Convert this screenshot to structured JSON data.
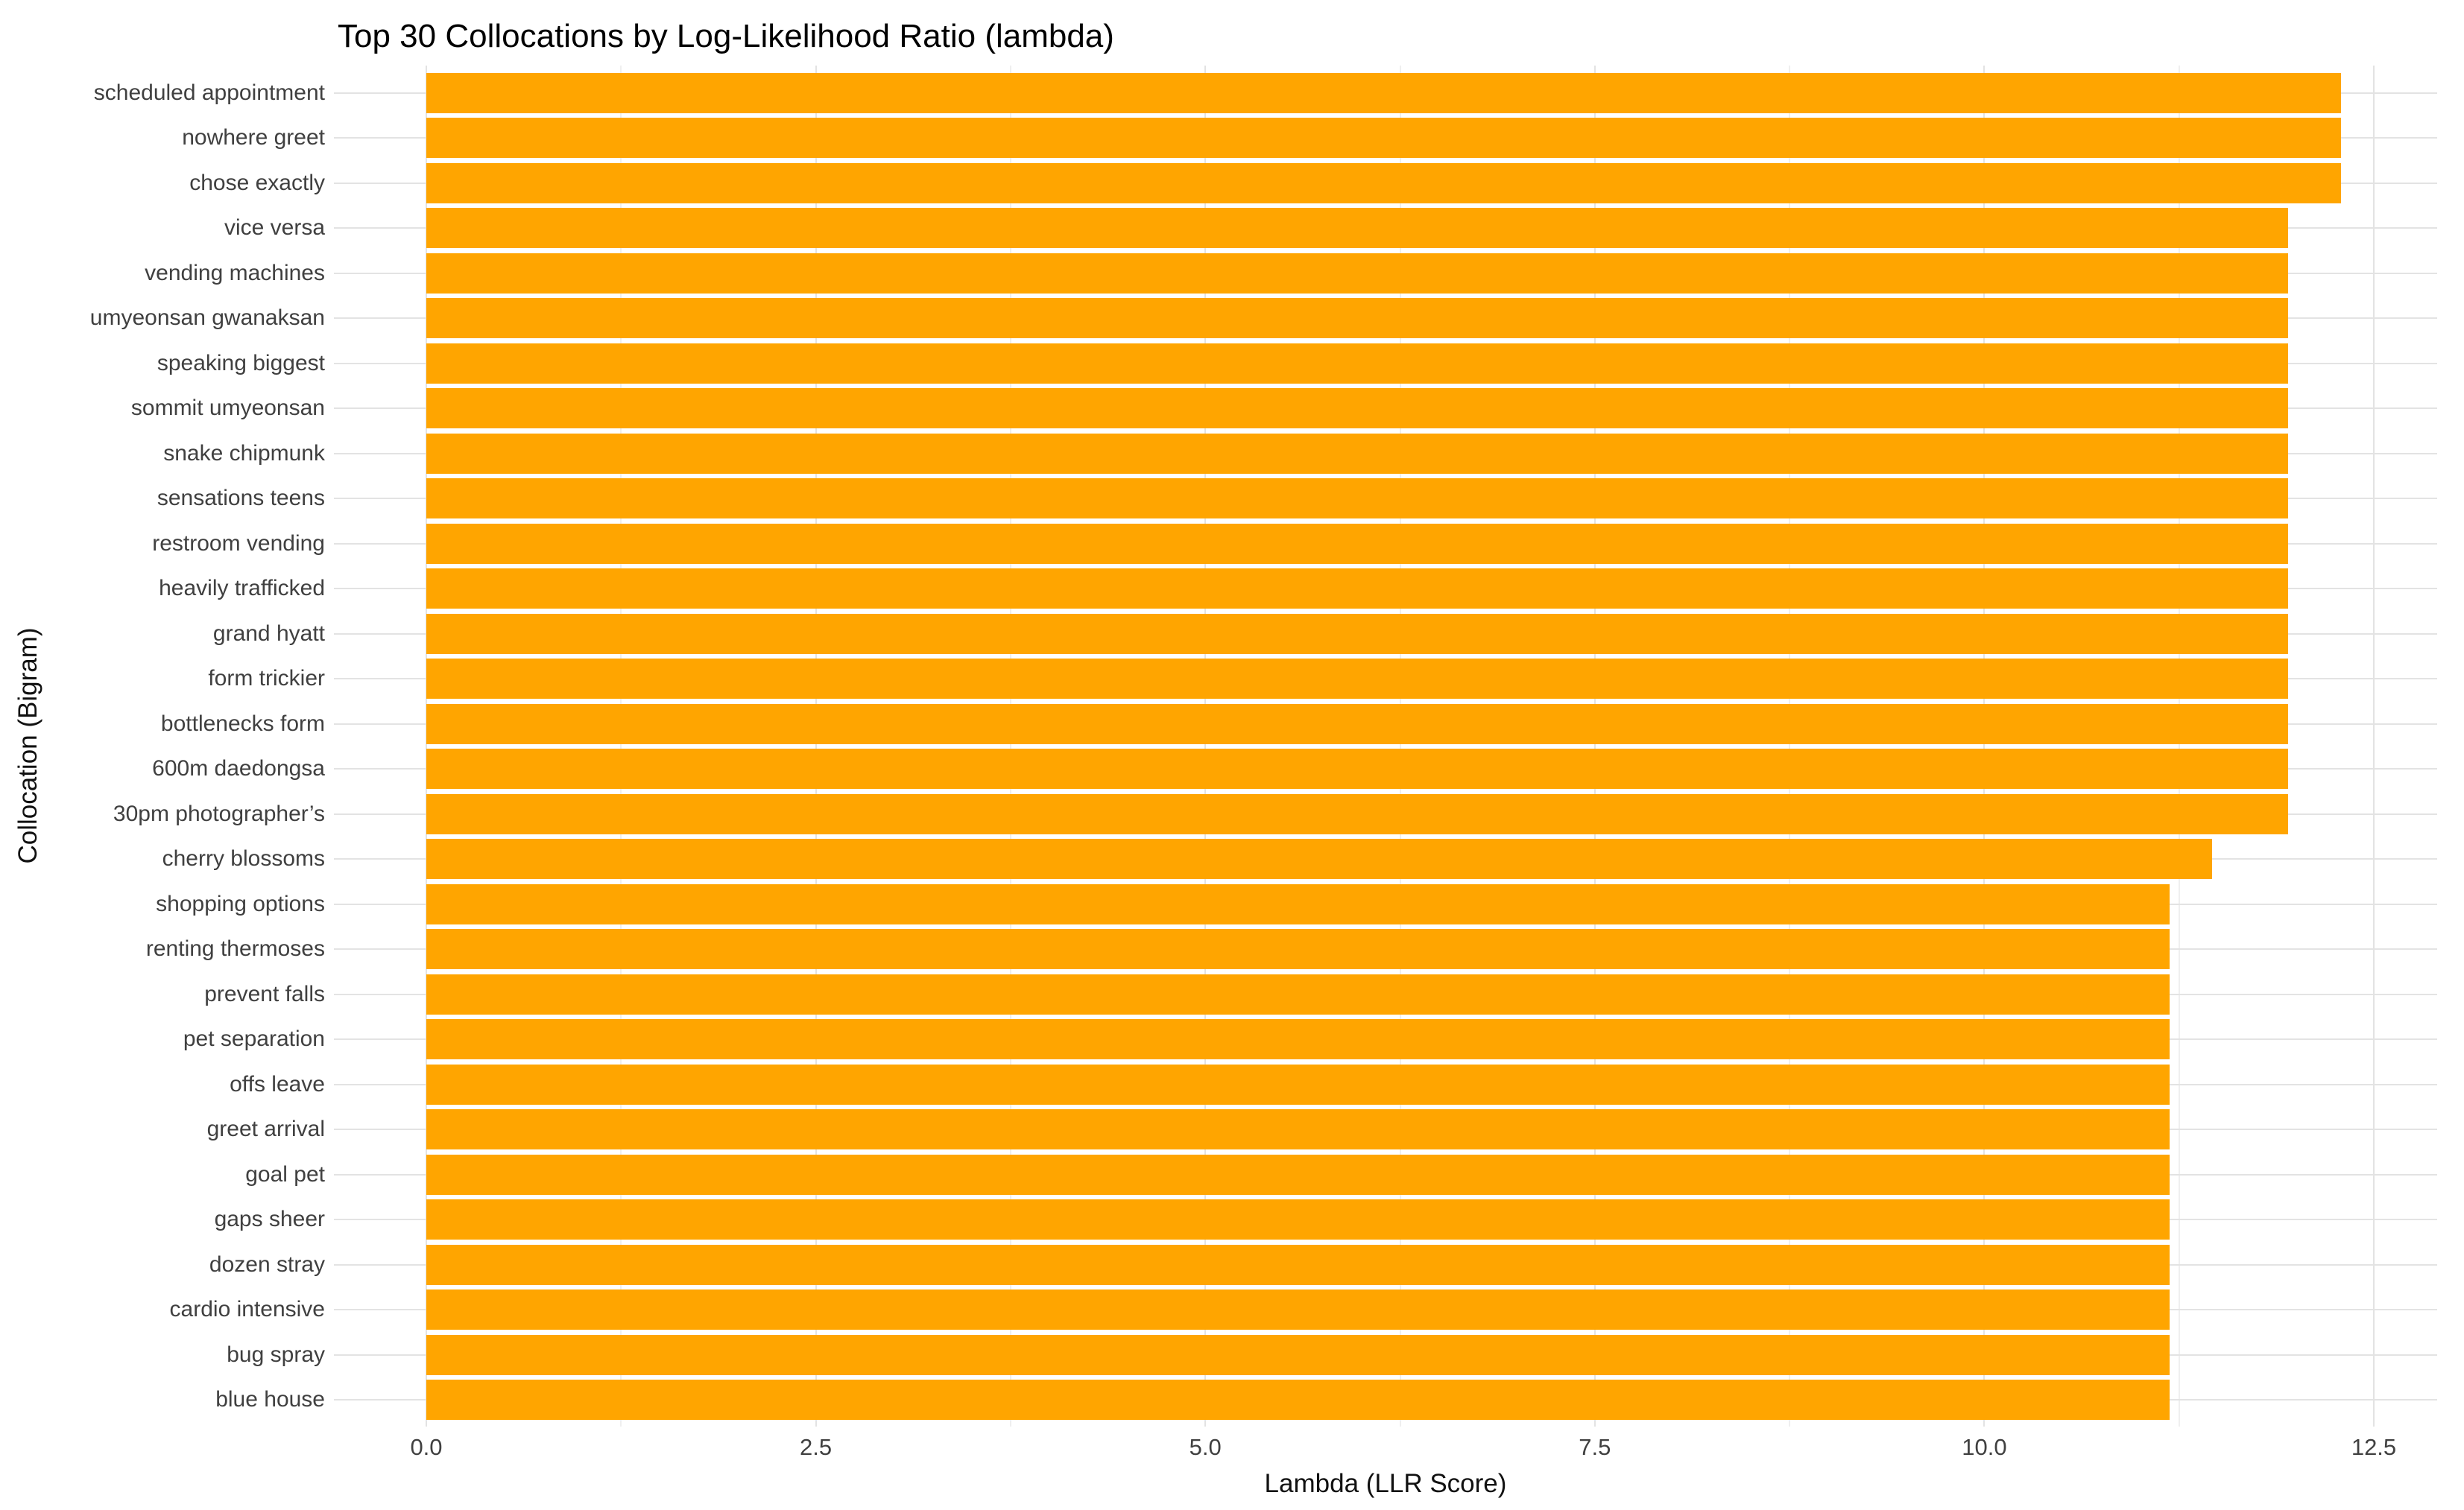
{
  "chart_data": {
    "type": "bar",
    "orientation": "horizontal",
    "title": "Top 30 Collocations by Log-Likelihood Ratio (lambda)",
    "xlabel": "Lambda (LLR Score)",
    "ylabel": "Collocation (Bigram)",
    "categories": [
      "scheduled appointment",
      "nowhere greet",
      "chose exactly",
      "vice versa",
      "vending machines",
      "umyeonsan gwanaksan",
      "speaking biggest",
      "sommit umyeonsan",
      "snake chipmunk",
      "sensations teens",
      "restroom vending",
      "heavily trafficked",
      "grand hyatt",
      "form trickier",
      "bottlenecks form",
      "600m daedongsa",
      "30pm photographer’s",
      "cherry blossoms",
      "shopping options",
      "renting thermoses",
      "prevent falls",
      "pet separation",
      "offs leave",
      "greet arrival",
      "goal pet",
      "gaps sheer",
      "dozen stray",
      "cardio intensive",
      "bug spray",
      "blue house"
    ],
    "values": [
      12.29,
      12.29,
      12.29,
      11.95,
      11.95,
      11.95,
      11.95,
      11.95,
      11.95,
      11.95,
      11.95,
      11.95,
      11.95,
      11.95,
      11.95,
      11.95,
      11.95,
      11.46,
      11.19,
      11.19,
      11.19,
      11.19,
      11.19,
      11.19,
      11.19,
      11.19,
      11.19,
      11.19,
      11.19,
      11.19
    ],
    "x_ticks": [
      {
        "label": "0.0",
        "value": 0
      },
      {
        "label": "2.5",
        "value": 2.5
      },
      {
        "label": "5.0",
        "value": 5
      },
      {
        "label": "7.5",
        "value": 7.5
      },
      {
        "label": "10.0",
        "value": 10
      },
      {
        "label": "12.5",
        "value": 12.5
      }
    ],
    "x_minor_ticks": [
      1.25,
      3.75,
      6.25,
      8.75,
      11.25
    ],
    "xlim": [
      0,
      12.5
    ],
    "grid": true,
    "legend_position": "none",
    "colors": {
      "bar": "#FFA500",
      "grid_major": "#e3e3e3",
      "grid_minor": "#efefef",
      "tick_label": "#404040",
      "axis_title": "#111111",
      "title": "#000000",
      "background": "#ffffff"
    }
  }
}
